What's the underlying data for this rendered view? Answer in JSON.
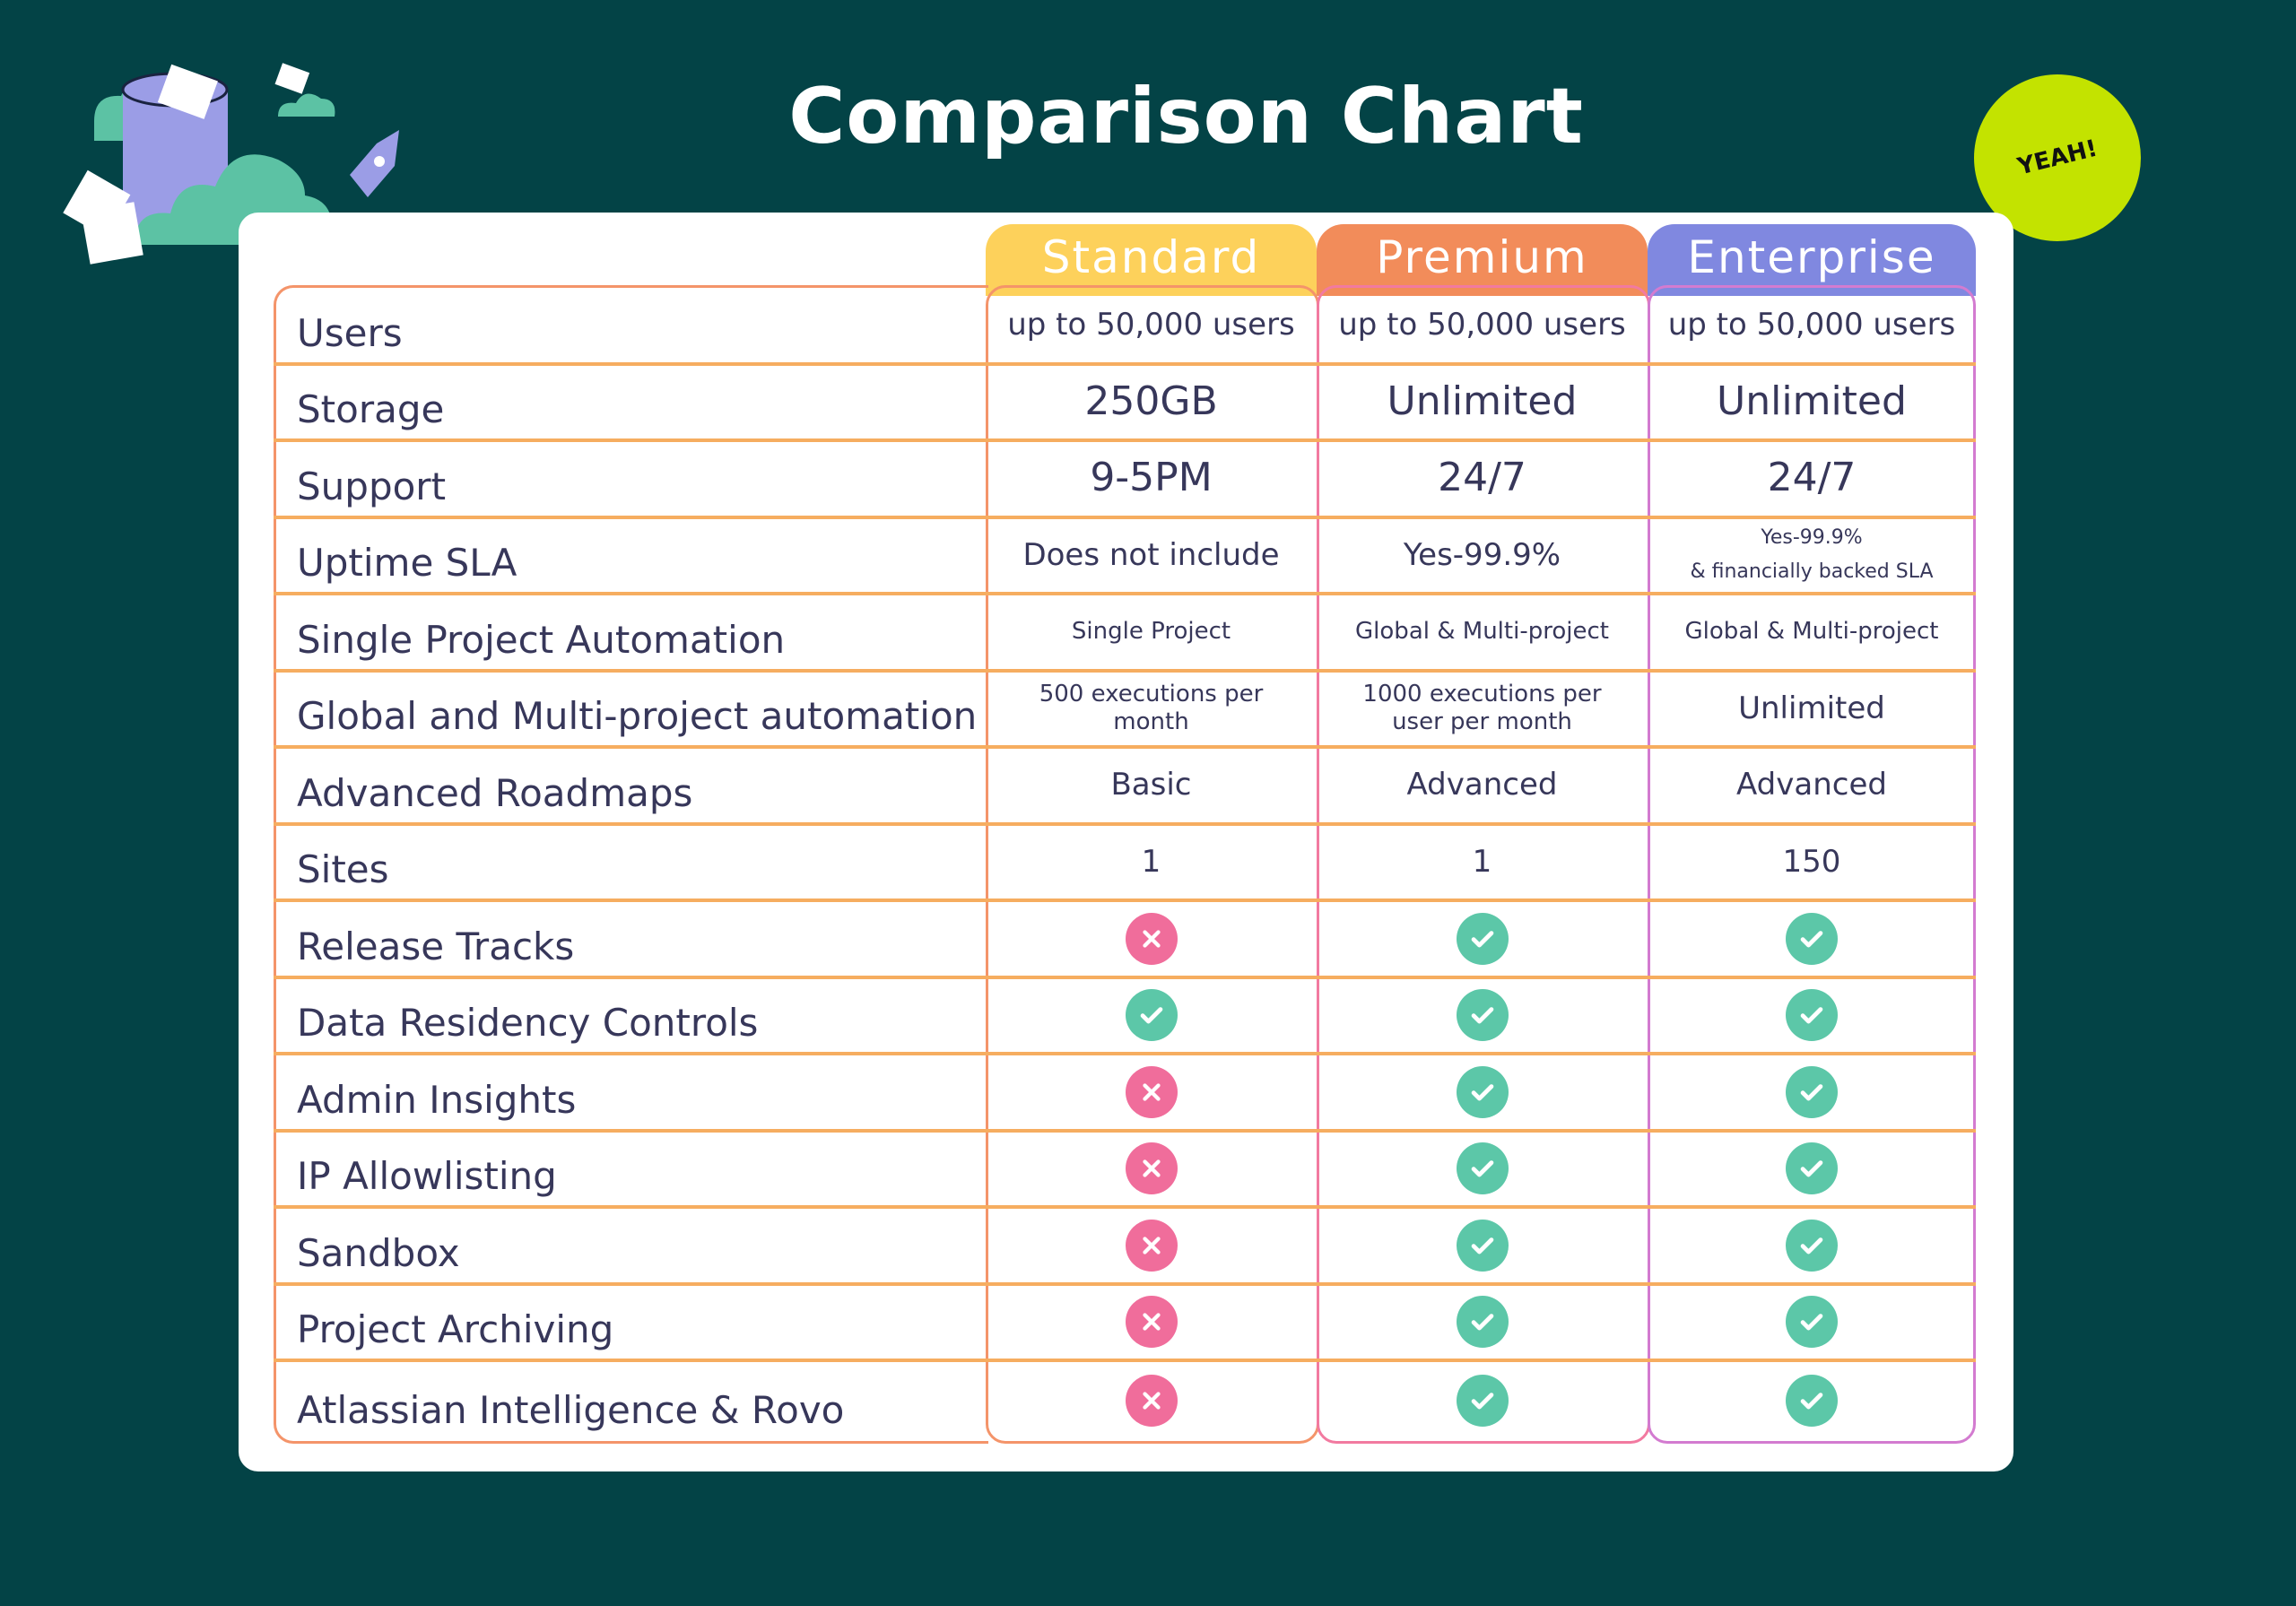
{
  "title": "Comparison Chart",
  "badge": "YEAH!",
  "colors": {
    "background": "#034346",
    "standard": "#fdd15b",
    "premium": "#f28c5a",
    "enterprise": "#8088e0",
    "check": "#5cc7a8",
    "cross": "#f06d9b",
    "badge": "#c3e300"
  },
  "plans": [
    "Standard",
    "Premium",
    "Enterprise"
  ],
  "rows": [
    {
      "feature": "Users",
      "values": [
        "up to 50,000 users",
        "up to 50,000 users",
        "up to 50,000 users"
      ]
    },
    {
      "feature": "Storage",
      "values": [
        "250GB",
        "Unlimited",
        "Unlimited"
      ]
    },
    {
      "feature": "Support",
      "values": [
        "9-5PM",
        "24/7",
        "24/7"
      ]
    },
    {
      "feature": "Uptime SLA",
      "values": [
        "Does not include",
        "Yes-99.9%",
        "Yes-99.9%"
      ],
      "extra": "& financially backed SLA"
    },
    {
      "feature": "Single Project Automation",
      "values": [
        "Single Project",
        "Global & Multi-project",
        "Global & Multi-project"
      ]
    },
    {
      "feature": "Global and Multi-project automation",
      "values": [
        "500 executions per month",
        "1000 executions per user per month",
        "Unlimited"
      ]
    },
    {
      "feature": "Advanced Roadmaps",
      "values": [
        "Basic",
        "Advanced",
        "Advanced"
      ]
    },
    {
      "feature": "Sites",
      "values": [
        "1",
        "1",
        "150"
      ]
    },
    {
      "feature": "Release Tracks",
      "icons": [
        "cross",
        "check",
        "check"
      ]
    },
    {
      "feature": "Data Residency Controls",
      "icons": [
        "check",
        "check",
        "check"
      ]
    },
    {
      "feature": "Admin Insights",
      "icons": [
        "cross",
        "check",
        "check"
      ]
    },
    {
      "feature": "IP Allowlisting",
      "icons": [
        "cross",
        "check",
        "check"
      ]
    },
    {
      "feature": "Sandbox",
      "icons": [
        "cross",
        "check",
        "check"
      ]
    },
    {
      "feature": "Project Archiving",
      "icons": [
        "cross",
        "check",
        "check"
      ]
    },
    {
      "feature": "Atlassian Intelligence & Rovo",
      "icons": [
        "cross",
        "check",
        "check"
      ]
    }
  ]
}
